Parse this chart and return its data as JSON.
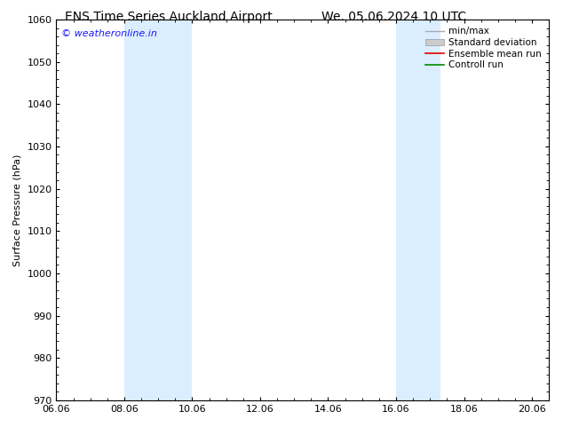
{
  "title1": "ENS Time Series Auckland Airport",
  "title2": "We. 05.06.2024 10 UTC",
  "ylabel": "Surface Pressure (hPa)",
  "ylim": [
    970,
    1060
  ],
  "yticks": [
    970,
    980,
    990,
    1000,
    1010,
    1020,
    1030,
    1040,
    1050,
    1060
  ],
  "xlim_start": 0,
  "xlim_end": 14.5,
  "xtick_labels": [
    "06.06",
    "08.06",
    "10.06",
    "12.06",
    "14.06",
    "16.06",
    "18.06",
    "20.06"
  ],
  "xtick_positions": [
    0,
    2,
    4,
    6,
    8,
    10,
    12,
    14
  ],
  "shaded_bands": [
    {
      "xmin": 2.0,
      "xmax": 4.0
    },
    {
      "xmin": 10.0,
      "xmax": 11.3
    }
  ],
  "band_color": "#daeeff",
  "watermark_text": "© weatheronline.in",
  "watermark_color": "#1a1aff",
  "bg_color": "#ffffff",
  "grid_color": "#cccccc",
  "title_fontsize": 10,
  "axis_fontsize": 8,
  "tick_fontsize": 8,
  "legend_fontsize": 7.5
}
